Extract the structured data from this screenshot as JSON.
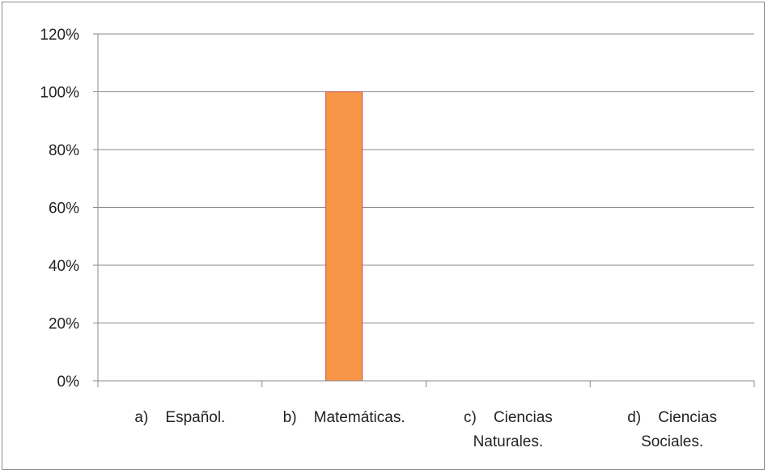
{
  "chart_data": {
    "type": "bar",
    "categories": [
      [
        "a)    Español."
      ],
      [
        "b)    Matemáticas."
      ],
      [
        "c)    Ciencias",
        "Naturales."
      ],
      [
        "d)    Ciencias",
        "Sociales."
      ]
    ],
    "values": [
      0,
      1.0,
      0,
      0
    ],
    "ylim": [
      0,
      1.2
    ],
    "yticks": [
      0,
      0.2,
      0.4,
      0.6,
      0.8,
      1.0,
      1.2
    ],
    "ytick_labels": [
      "0%",
      "20%",
      "40%",
      "60%",
      "80%",
      "100%",
      "120%"
    ],
    "grid": true,
    "legend": "none",
    "title": "",
    "xlabel": "",
    "ylabel": "",
    "colors": {
      "bar_fill": "#F79646",
      "bar_stroke": "#C0504D",
      "grid": "#8a8a8a",
      "axis": "#8a8a8a",
      "frame": "#8a8a8a"
    }
  }
}
